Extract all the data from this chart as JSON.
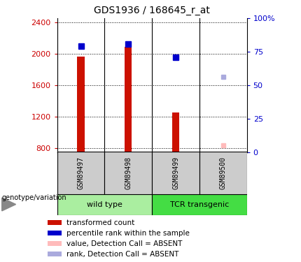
{
  "title": "GDS1936 / 168645_r_at",
  "samples": [
    "GSM89497",
    "GSM89498",
    "GSM89499",
    "GSM89500"
  ],
  "groups": [
    {
      "name": "wild type",
      "indices": [
        0,
        1
      ],
      "color": "#aaeea0"
    },
    {
      "name": "TCR transgenic",
      "indices": [
        2,
        3
      ],
      "color": "#44dd44"
    }
  ],
  "transformed_counts": [
    1960,
    2090,
    1250,
    null
  ],
  "percentile_ranks": [
    79,
    81,
    71,
    null
  ],
  "absent_values": [
    null,
    null,
    null,
    833
  ],
  "absent_ranks": [
    null,
    null,
    null,
    56
  ],
  "ylim_left": [
    750,
    2450
  ],
  "ylim_right": [
    0,
    100
  ],
  "yticks_left": [
    800,
    1200,
    1600,
    2000,
    2400
  ],
  "yticks_right": [
    0,
    25,
    50,
    75,
    100
  ],
  "ytick_labels_left": [
    "800",
    "1200",
    "1600",
    "2000",
    "2400"
  ],
  "ytick_labels_right": [
    "0",
    "25",
    "50",
    "75",
    "100%"
  ],
  "bar_color": "#cc1100",
  "rank_color": "#0000cc",
  "absent_val_color": "#ffbbbb",
  "absent_rank_color": "#aaaadd",
  "bar_width": 0.15,
  "absent_bar_width": 0.12,
  "marker_size": 6,
  "absent_marker_size": 5,
  "sample_box_color": "#cccccc",
  "left_tick_color": "#cc0000",
  "right_tick_color": "#0000cc",
  "legend_items": [
    {
      "label": "transformed count",
      "color": "#cc1100"
    },
    {
      "label": "percentile rank within the sample",
      "color": "#0000cc"
    },
    {
      "label": "value, Detection Call = ABSENT",
      "color": "#ffbbbb"
    },
    {
      "label": "rank, Detection Call = ABSENT",
      "color": "#aaaadd"
    }
  ]
}
